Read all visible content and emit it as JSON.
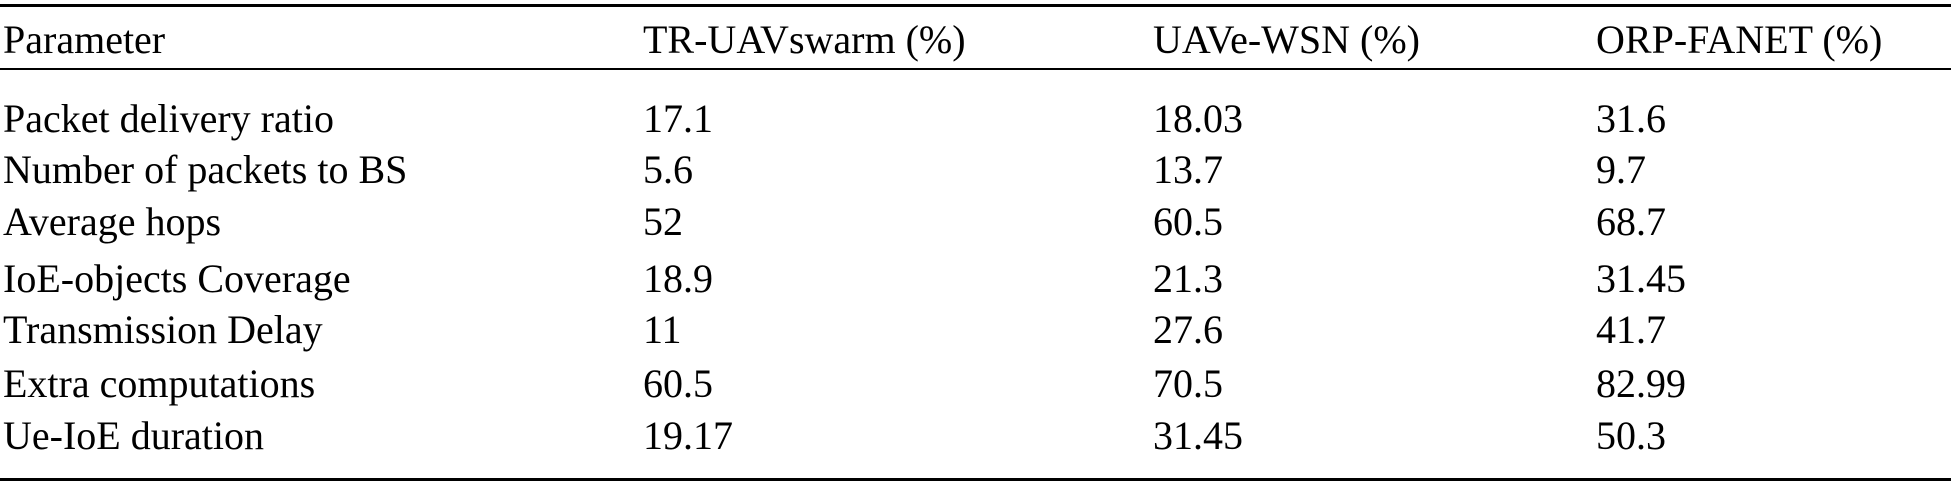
{
  "table": {
    "headers": [
      "Parameter",
      "TR-UAVswarm (%)",
      "UAVe-WSN (%)",
      "ORP-FANET (%)"
    ],
    "rows": [
      [
        "Packet delivery ratio",
        "17.1",
        "18.03",
        "31.6"
      ],
      [
        "Number of packets to BS",
        "5.6",
        "13.7",
        "9.7"
      ],
      [
        "Average hops",
        "52",
        "60.5",
        "68.7"
      ],
      [
        "IoE-objects Coverage",
        "18.9",
        "21.3",
        "31.45"
      ],
      [
        "Transmission Delay",
        "11",
        "27.6",
        "41.7"
      ],
      [
        "Extra computations",
        "60.5",
        "70.5",
        "82.99"
      ],
      [
        "Ue-IoE duration",
        "19.17",
        "31.45",
        "50.3"
      ]
    ]
  }
}
